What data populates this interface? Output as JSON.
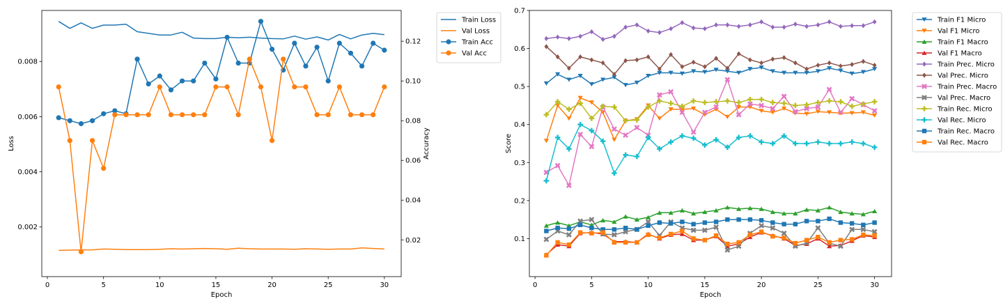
{
  "chart_data": [
    {
      "type": "line",
      "xlabel": "Epoch",
      "ylabel": "Loss",
      "y2label": "Accuracy",
      "xlim": [
        -0.5,
        31.5
      ],
      "ylim": [
        0.0002,
        0.00985
      ],
      "y2lim": [
        0.0015,
        0.1355
      ],
      "xticks": [
        0,
        5,
        10,
        15,
        20,
        25,
        30
      ],
      "yticks": [
        0.002,
        0.004,
        0.006,
        0.008
      ],
      "y2ticks": [
        0.02,
        0.04,
        0.06,
        0.08,
        0.1,
        0.12
      ],
      "legend_position": "outside-right",
      "x": [
        1,
        2,
        3,
        4,
        5,
        6,
        7,
        8,
        9,
        10,
        11,
        12,
        13,
        14,
        15,
        16,
        17,
        18,
        19,
        20,
        21,
        22,
        23,
        24,
        25,
        26,
        27,
        28,
        29,
        30
      ],
      "series": [
        {
          "name": "Train Loss",
          "axis": "left",
          "color": "#1f77b4",
          "marker": "none",
          "values": [
            0.00945,
            0.0092,
            0.0094,
            0.0092,
            0.00932,
            0.00932,
            0.00935,
            0.00908,
            0.00902,
            0.00896,
            0.00896,
            0.00906,
            0.00885,
            0.00883,
            0.00883,
            0.00888,
            0.00886,
            0.00888,
            0.00885,
            0.00883,
            0.00882,
            0.00892,
            0.00881,
            0.00889,
            0.00878,
            0.00898,
            0.00882,
            0.00896,
            0.00902,
            0.00897
          ]
        },
        {
          "name": "Val Loss",
          "axis": "left",
          "color": "#ff7f0e",
          "marker": "none",
          "values": [
            0.00115,
            0.00116,
            0.00117,
            0.00117,
            0.0012,
            0.00119,
            0.00118,
            0.00118,
            0.00118,
            0.00119,
            0.00121,
            0.0012,
            0.00121,
            0.00122,
            0.00121,
            0.00119,
            0.00123,
            0.00121,
            0.0012,
            0.0012,
            0.0012,
            0.00119,
            0.00121,
            0.0012,
            0.00119,
            0.0012,
            0.0012,
            0.00124,
            0.00122,
            0.0012
          ]
        },
        {
          "name": "Train Acc",
          "axis": "right",
          "color": "#1f77b4",
          "marker": "circle",
          "values": [
            0.0815,
            0.08,
            0.0785,
            0.08,
            0.0835,
            0.085,
            0.0835,
            0.111,
            0.0985,
            0.1025,
            0.0955,
            0.1,
            0.1,
            0.109,
            0.101,
            0.122,
            0.109,
            0.109,
            0.13,
            0.116,
            0.1055,
            0.119,
            0.1075,
            0.117,
            0.1,
            0.119,
            0.114,
            0.1075,
            0.119,
            0.1155
          ]
        },
        {
          "name": "Val Acc",
          "axis": "right",
          "color": "#ff7f0e",
          "marker": "circle",
          "values": [
            0.097,
            0.07,
            0.014,
            0.07,
            0.056,
            0.083,
            0.083,
            0.083,
            0.083,
            0.097,
            0.083,
            0.083,
            0.083,
            0.083,
            0.097,
            0.097,
            0.083,
            0.111,
            0.097,
            0.07,
            0.111,
            0.097,
            0.097,
            0.083,
            0.083,
            0.097,
            0.083,
            0.083,
            0.083,
            0.097
          ]
        }
      ]
    },
    {
      "type": "line",
      "xlabel": "Epoch",
      "ylabel": "Score",
      "xlim": [
        -0.5,
        31.5
      ],
      "ylim": [
        0.0,
        0.7
      ],
      "xticks": [
        0,
        5,
        10,
        15,
        20,
        25,
        30
      ],
      "yticks": [
        0.1,
        0.2,
        0.3,
        0.4,
        0.5,
        0.6,
        0.7
      ],
      "legend_position": "outside-right",
      "x": [
        1,
        2,
        3,
        4,
        5,
        6,
        7,
        8,
        9,
        10,
        11,
        12,
        13,
        14,
        15,
        16,
        17,
        18,
        19,
        20,
        21,
        22,
        23,
        24,
        25,
        26,
        27,
        28,
        29,
        30
      ],
      "series": [
        {
          "name": "Train F1 Micro",
          "color": "#1f77b4",
          "marker": "tri-down",
          "values": [
            0.508,
            0.532,
            0.518,
            0.528,
            0.506,
            0.518,
            0.524,
            0.504,
            0.51,
            0.528,
            0.536,
            0.536,
            0.534,
            0.54,
            0.538,
            0.544,
            0.54,
            0.536,
            0.546,
            0.55,
            0.54,
            0.536,
            0.536,
            0.536,
            0.54,
            0.548,
            0.542,
            0.534,
            0.538,
            0.546
          ]
        },
        {
          "name": "Val F1 Micro",
          "color": "#ff7f0e",
          "marker": "tri-down",
          "values": [
            0.357,
            0.45,
            0.416,
            0.47,
            0.458,
            0.432,
            0.36,
            0.41,
            0.414,
            0.45,
            0.416,
            0.44,
            0.44,
            0.442,
            0.426,
            0.44,
            0.42,
            0.446,
            0.446,
            0.436,
            0.432,
            0.442,
            0.43,
            0.428,
            0.434,
            0.432,
            0.43,
            0.43,
            0.432,
            0.424
          ]
        },
        {
          "name": "Train F1 Macro",
          "color": "#2ca02c",
          "marker": "tri-up",
          "values": [
            0.134,
            0.142,
            0.134,
            0.144,
            0.136,
            0.148,
            0.144,
            0.158,
            0.15,
            0.156,
            0.168,
            0.168,
            0.174,
            0.166,
            0.17,
            0.174,
            0.182,
            0.178,
            0.18,
            0.178,
            0.17,
            0.166,
            0.166,
            0.176,
            0.174,
            0.182,
            0.17,
            0.166,
            0.164,
            0.172
          ]
        },
        {
          "name": "Val F1 Macro",
          "color": "#d62728",
          "marker": "tri-up",
          "values": [
            0.058,
            0.084,
            0.08,
            0.114,
            0.116,
            0.112,
            0.092,
            0.092,
            0.09,
            0.112,
            0.1,
            0.11,
            0.112,
            0.096,
            0.096,
            0.106,
            0.08,
            0.086,
            0.104,
            0.116,
            0.108,
            0.1,
            0.082,
            0.086,
            0.1,
            0.08,
            0.082,
            0.094,
            0.108,
            0.104
          ]
        },
        {
          "name": "Train Prec. Micro",
          "color": "#9467bd",
          "marker": "diamond",
          "values": [
            0.626,
            0.63,
            0.626,
            0.632,
            0.644,
            0.624,
            0.632,
            0.656,
            0.662,
            0.646,
            0.642,
            0.652,
            0.668,
            0.654,
            0.652,
            0.662,
            0.662,
            0.658,
            0.662,
            0.67,
            0.656,
            0.656,
            0.664,
            0.658,
            0.662,
            0.67,
            0.658,
            0.66,
            0.66,
            0.67
          ]
        },
        {
          "name": "Val Prec. Micro",
          "color": "#8c564b",
          "marker": "diamond",
          "values": [
            0.605,
            0.578,
            0.548,
            0.578,
            0.57,
            0.562,
            0.532,
            0.568,
            0.57,
            0.578,
            0.546,
            0.584,
            0.552,
            0.564,
            0.552,
            0.574,
            0.548,
            0.586,
            0.57,
            0.562,
            0.572,
            0.576,
            0.562,
            0.546,
            0.556,
            0.562,
            0.554,
            0.558,
            0.566,
            0.556
          ]
        },
        {
          "name": "Train Prec. Macro",
          "color": "#e377c2",
          "marker": "x",
          "values": [
            0.274,
            0.292,
            0.24,
            0.374,
            0.342,
            0.446,
            0.388,
            0.372,
            0.392,
            0.372,
            0.478,
            0.486,
            0.432,
            0.38,
            0.432,
            0.446,
            0.518,
            0.426,
            0.454,
            0.45,
            0.442,
            0.474,
            0.434,
            0.442,
            0.446,
            0.492,
            0.432,
            0.468,
            0.452,
            0.436
          ]
        },
        {
          "name": "Val Prec. Macro",
          "color": "#7f7f7f",
          "marker": "x",
          "values": [
            0.098,
            0.12,
            0.11,
            0.146,
            0.15,
            0.112,
            0.11,
            0.118,
            0.124,
            0.144,
            0.108,
            0.144,
            0.128,
            0.122,
            0.122,
            0.13,
            0.07,
            0.08,
            0.114,
            0.134,
            0.128,
            0.114,
            0.08,
            0.088,
            0.128,
            0.088,
            0.08,
            0.124,
            0.124,
            0.118
          ]
        },
        {
          "name": "Train Rec. Micro",
          "color": "#bcbd22",
          "marker": "plus",
          "values": [
            0.426,
            0.46,
            0.44,
            0.456,
            0.416,
            0.448,
            0.446,
            0.41,
            0.412,
            0.446,
            0.462,
            0.456,
            0.448,
            0.462,
            0.458,
            0.46,
            0.462,
            0.458,
            0.466,
            0.466,
            0.458,
            0.456,
            0.45,
            0.452,
            0.458,
            0.462,
            0.46,
            0.448,
            0.454,
            0.46
          ]
        },
        {
          "name": "Val Rec. Micro",
          "color": "#17becf",
          "marker": "plus",
          "values": [
            0.252,
            0.366,
            0.336,
            0.4,
            0.384,
            0.356,
            0.272,
            0.32,
            0.316,
            0.366,
            0.336,
            0.354,
            0.37,
            0.364,
            0.346,
            0.36,
            0.34,
            0.366,
            0.37,
            0.354,
            0.35,
            0.37,
            0.35,
            0.35,
            0.354,
            0.35,
            0.35,
            0.354,
            0.35,
            0.34
          ]
        },
        {
          "name": "Train Rec. Macro",
          "color": "#1f77b4",
          "marker": "square",
          "values": [
            0.12,
            0.128,
            0.126,
            0.136,
            0.128,
            0.124,
            0.124,
            0.128,
            0.124,
            0.134,
            0.142,
            0.14,
            0.144,
            0.138,
            0.142,
            0.144,
            0.15,
            0.15,
            0.15,
            0.148,
            0.142,
            0.138,
            0.138,
            0.146,
            0.146,
            0.152,
            0.142,
            0.14,
            0.136,
            0.142
          ]
        },
        {
          "name": "Val Rec. Macro",
          "color": "#ff7f0e",
          "marker": "square",
          "values": [
            0.056,
            0.09,
            0.084,
            0.116,
            0.114,
            0.116,
            0.09,
            0.09,
            0.09,
            0.11,
            0.102,
            0.112,
            0.12,
            0.1,
            0.096,
            0.108,
            0.086,
            0.09,
            0.11,
            0.118,
            0.106,
            0.102,
            0.088,
            0.096,
            0.104,
            0.09,
            0.096,
            0.098,
            0.11,
            0.108
          ]
        }
      ]
    }
  ]
}
